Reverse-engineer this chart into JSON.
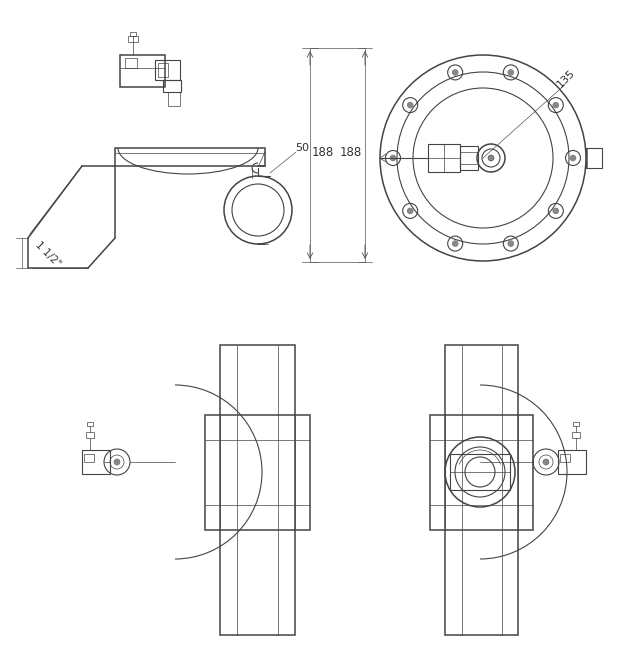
{
  "bg_color": "#ffffff",
  "lc": "#444444",
  "lc_dim": "#555555",
  "lw_thin": 0.5,
  "lw_med": 0.8,
  "lw_thick": 1.1,
  "dim_188": "188",
  "dim_135": "135",
  "dim_50": "50",
  "dim_pipe": "1 1/2\"",
  "figw": 6.24,
  "figh": 6.51,
  "dpi": 100
}
